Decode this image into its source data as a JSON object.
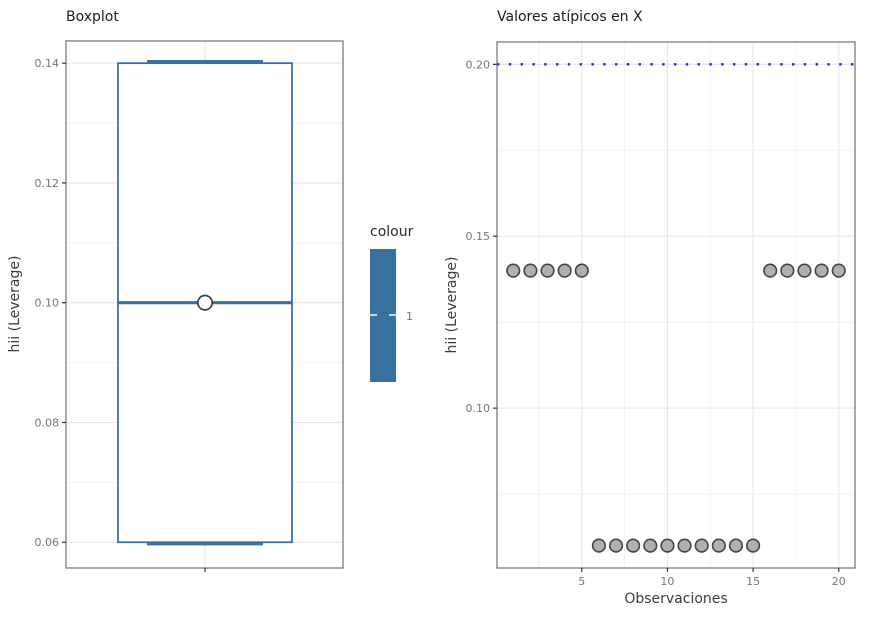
{
  "figure": {
    "background": "#ffffff"
  },
  "legend": {
    "title": "colour",
    "tick_label": "1",
    "bar_color": "#38719f",
    "tick_mark_color": "#d2d9de"
  },
  "styles": {
    "box_color": "#3d6fa0",
    "box_fill": "#ffffff",
    "hline_color": "#2222e0",
    "point_fill": "#b0b0b0",
    "point_stroke": "#454545",
    "mean_point_fill": "#ffffff",
    "mean_point_stroke": "#3f3f3f",
    "grid_major": "#e6e6e6",
    "grid_minor": "#f2f2f2",
    "panel_border": "#7c7c7c",
    "tick_color": "#333333",
    "tick_label_color": "#767676"
  },
  "chart_data": [
    {
      "type": "boxplot",
      "title": "Boxplot",
      "xlabel": "",
      "ylabel": "hii (Leverage)",
      "ylim": [
        0.0557,
        0.1437
      ],
      "yticks": [
        0.06,
        0.08,
        0.1,
        0.12,
        0.14
      ],
      "ytick_labels": [
        "0.06",
        "0.08",
        "0.10",
        "0.12",
        "0.14"
      ],
      "minor_yticks": [
        0.07,
        0.09,
        0.11,
        0.13
      ],
      "grid": true,
      "series": [
        {
          "name": "1",
          "q1": 0.06,
          "median": 0.1,
          "q3": 0.14,
          "whisker_low": 0.06,
          "whisker_high": 0.14,
          "mean": 0.1
        }
      ]
    },
    {
      "type": "scatter",
      "title": "Valores atípicos en X",
      "xlabel": "Observaciones",
      "ylabel": "hii (Leverage)",
      "xlim": [
        0.05,
        20.95
      ],
      "ylim": [
        0.0535,
        0.2065
      ],
      "xticks": [
        5,
        10,
        15,
        20
      ],
      "xtick_labels": [
        "5",
        "10",
        "15",
        "20"
      ],
      "minor_xticks": [
        2.5,
        7.5,
        12.5,
        17.5
      ],
      "yticks": [
        0.1,
        0.15,
        0.2
      ],
      "ytick_labels": [
        "0.10",
        "0.15",
        "0.20"
      ],
      "minor_yticks": [
        0.075,
        0.125,
        0.175
      ],
      "grid": true,
      "hline": {
        "y": 0.2,
        "linetype": "dotted"
      },
      "points": {
        "x": [
          1,
          2,
          3,
          4,
          5,
          6,
          7,
          8,
          9,
          10,
          11,
          12,
          13,
          14,
          15,
          16,
          17,
          18,
          19,
          20
        ],
        "y": [
          0.14,
          0.14,
          0.14,
          0.14,
          0.14,
          0.06,
          0.06,
          0.06,
          0.06,
          0.06,
          0.06,
          0.06,
          0.06,
          0.06,
          0.06,
          0.14,
          0.14,
          0.14,
          0.14,
          0.14
        ]
      }
    }
  ]
}
